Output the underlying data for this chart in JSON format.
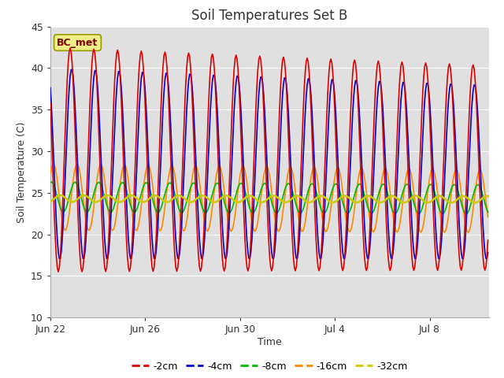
{
  "title": "Soil Temperatures Set B",
  "xlabel": "Time",
  "ylabel": "Soil Temperature (C)",
  "ylim": [
    10,
    45
  ],
  "yticks": [
    10,
    15,
    20,
    25,
    30,
    35,
    40,
    45
  ],
  "annotation": "BC_met",
  "fig_bg": "#ffffff",
  "plot_bg": "#e0e0e0",
  "line_colors": {
    "-2cm": "#dd0000",
    "-4cm": "#0000cc",
    "-8cm": "#00bb00",
    "-16cm": "#ff8800",
    "-32cm": "#cccc00"
  },
  "line_widths": {
    "-2cm": 1.2,
    "-4cm": 1.2,
    "-8cm": 1.2,
    "-16cm": 1.2,
    "-32cm": 1.8
  },
  "xlim_days": [
    0,
    18.5
  ],
  "tick_days": [
    0,
    4,
    8,
    12,
    16
  ],
  "tick_labels": [
    "Jun 22",
    "Jun 26",
    "Jun 30",
    "Jul 4",
    "Jul 8"
  ]
}
